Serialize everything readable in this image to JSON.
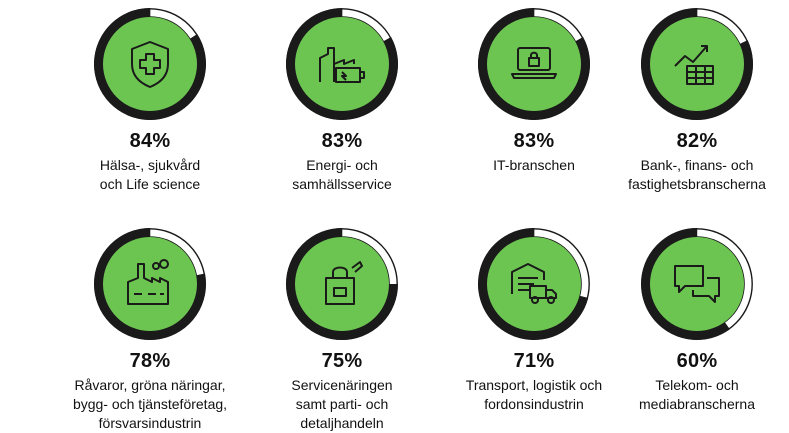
{
  "colors": {
    "ring_fill": "#1a1a1a",
    "ring_track": "#ffffff",
    "ring_outline": "#1a1a1a",
    "disc": "#6cc551",
    "icon_stroke": "#1a1a1a"
  },
  "items": [
    {
      "percent_text": "84%",
      "value": 84,
      "label": "Hälsa-, sjukvård\noch Life science",
      "icon": "shield-cross-icon"
    },
    {
      "percent_text": "83%",
      "value": 83,
      "label": "Energi- och\nsamhällsservice",
      "icon": "factory-battery-icon"
    },
    {
      "percent_text": "83%",
      "value": 83,
      "label": "IT-branschen",
      "icon": "laptop-lock-icon"
    },
    {
      "percent_text": "82%",
      "value": 82,
      "label": "Bank-, finans- och\nfastighetsbranscherna",
      "icon": "chart-table-icon"
    },
    {
      "percent_text": "78%",
      "value": 78,
      "label": "Råvaror, gröna näringar,\nbygg- och tjänsteföretag,\nförsvarsindustrin",
      "icon": "industry-icon"
    },
    {
      "percent_text": "75%",
      "value": 75,
      "label": "Servicenäringen\nsamt parti- och\ndetaljhandeln",
      "icon": "shopping-bag-icon"
    },
    {
      "percent_text": "71%",
      "value": 71,
      "label": "Transport, logistik och\nfordonsindustrin",
      "icon": "warehouse-truck-icon"
    },
    {
      "percent_text": "60%",
      "value": 60,
      "label": "Telekom- och\nmediabranscherna",
      "icon": "chat-bubbles-icon"
    }
  ]
}
